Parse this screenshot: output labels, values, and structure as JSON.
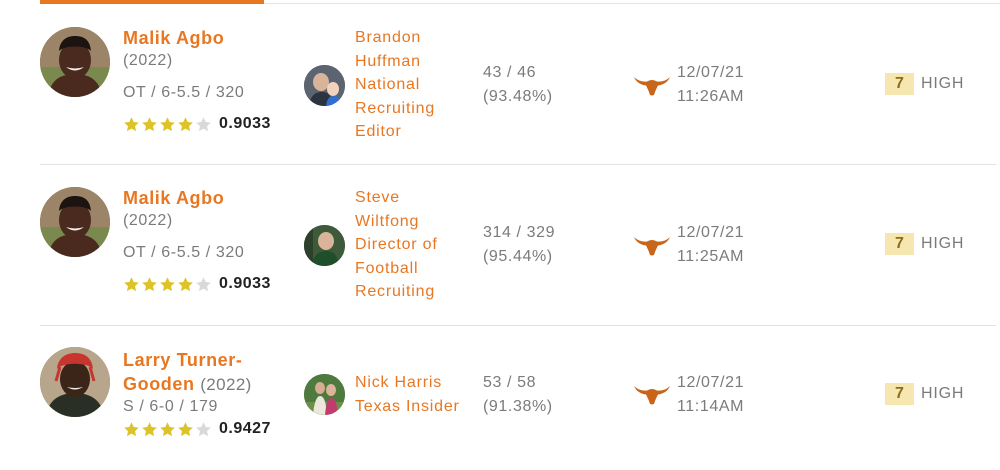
{
  "colors": {
    "accent": "#e87722",
    "muted_text": "#7b7b7b",
    "star_filled": "#dcc32a",
    "star_empty": "#d9d9d9",
    "badge_bg": "#f6e7b0"
  },
  "rows": [
    {
      "player": {
        "name": "Malik Agbo",
        "year": "(2022)",
        "pos_meta": "OT / 6-5.5 / 320",
        "stars": 4,
        "rating": "0.9033"
      },
      "recruiter": {
        "lines": [
          "Brandon",
          "Huffman",
          "National",
          "Recruiting",
          "Editor"
        ]
      },
      "accuracy": {
        "record": "43 / 46",
        "percent": "(93.48%)"
      },
      "team_icon": "longhorn-logo-icon",
      "date": "12/07/21",
      "time": "11:26AM",
      "confidence": {
        "value": "7",
        "label": "HIGH"
      }
    },
    {
      "player": {
        "name": "Malik Agbo",
        "year": "(2022)",
        "pos_meta": "OT / 6-5.5 / 320",
        "stars": 4,
        "rating": "0.9033"
      },
      "recruiter": {
        "lines": [
          "Steve",
          "Wiltfong",
          "Director of",
          "Football",
          "Recruiting"
        ]
      },
      "accuracy": {
        "record": "314 / 329",
        "percent": "(95.44%)"
      },
      "team_icon": "longhorn-logo-icon",
      "date": "12/07/21",
      "time": "11:25AM",
      "confidence": {
        "value": "7",
        "label": "HIGH"
      }
    },
    {
      "player": {
        "name_line1": "Larry Turner-",
        "name_line2": "Gooden",
        "year": "(2022)",
        "pos_meta": "S / 6-0 / 179",
        "stars": 4,
        "rating": "0.9427"
      },
      "recruiter": {
        "lines": [
          "Nick Harris",
          "Texas Insider"
        ]
      },
      "accuracy": {
        "record": "53 / 58",
        "percent": "(91.38%)"
      },
      "team_icon": "longhorn-logo-icon",
      "date": "12/07/21",
      "time": "11:14AM",
      "confidence": {
        "value": "7",
        "label": "HIGH"
      }
    }
  ]
}
